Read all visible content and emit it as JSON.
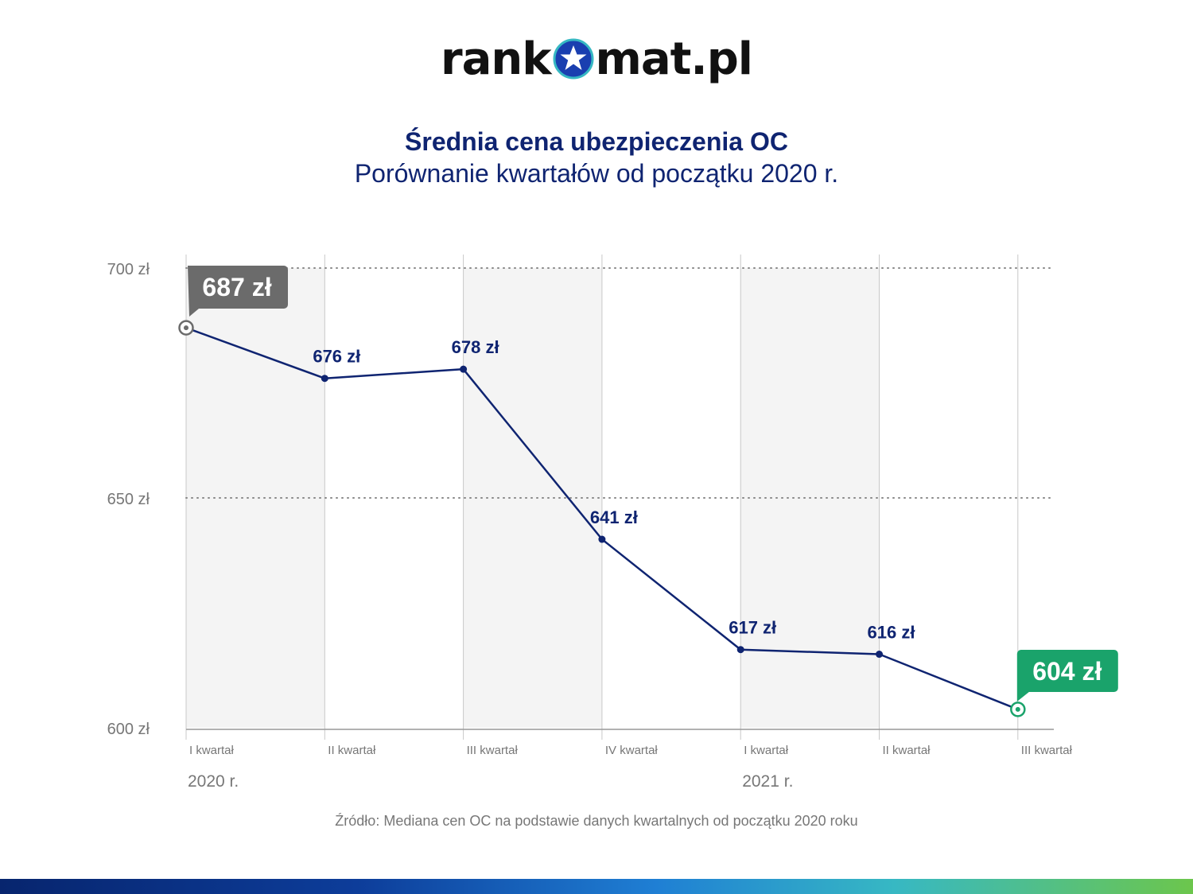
{
  "logo": {
    "text_left": "rank",
    "text_right": "mat.pl",
    "icon": "star-logo-icon"
  },
  "title": "Średnia cena ubezpieczenia OC",
  "subtitle": "Porównanie kwartałów od początku 2020 r.",
  "source": "Źródło: Mediana cen OC na podstawie danych kwartalnych od początku 2020 roku",
  "colors": {
    "line": "#0f2471",
    "start_badge": "#6b6b6b",
    "end_badge": "#1aa36b",
    "shade": "#f4f4f4",
    "grid": "#888888"
  },
  "chart_data": {
    "type": "line",
    "title": "Średnia cena ubezpieczenia OC",
    "subtitle": "Porównanie kwartałów od początku 2020 r.",
    "categories": [
      "I kwartał",
      "II kwartał",
      "III kwartał",
      "IV kwartał",
      "I kwartał",
      "II kwartał",
      "III kwartał"
    ],
    "years": [
      {
        "label": "2020 r.",
        "start_index": 0
      },
      {
        "label": "2021 r.",
        "start_index": 4
      }
    ],
    "values": [
      687,
      676,
      678,
      641,
      617,
      616,
      604
    ],
    "value_labels": [
      "687 zł",
      "676 zł",
      "678 zł",
      "641 zł",
      "617 zł",
      "616 zł",
      "604 zł"
    ],
    "y_ticks": [
      700,
      650,
      600
    ],
    "y_tick_labels": [
      "700 zł",
      "650 zł",
      "600 zł"
    ],
    "ylim": [
      600,
      700
    ],
    "xlabel": "",
    "ylabel": "",
    "grid": "horizontal-dotted",
    "highlight": {
      "first": "start_badge",
      "last": "end_badge"
    }
  }
}
